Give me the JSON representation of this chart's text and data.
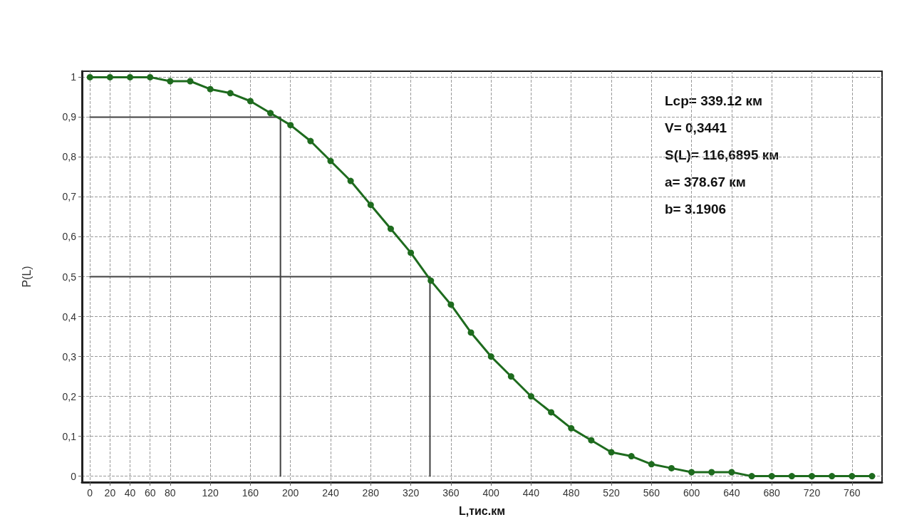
{
  "chart_data": {
    "type": "line",
    "xlabel": "L,тис.км",
    "ylabel": "P(L)",
    "x": [
      0,
      20,
      40,
      60,
      80,
      100,
      120,
      140,
      160,
      180,
      200,
      220,
      240,
      260,
      280,
      300,
      320,
      340,
      360,
      380,
      400,
      420,
      440,
      460,
      480,
      500,
      520,
      540,
      560,
      580,
      600,
      620,
      640,
      660,
      680,
      700,
      720,
      740,
      760,
      780
    ],
    "series": [
      {
        "color": "#1e6b1e",
        "marker": "circle",
        "values": [
          1,
          1,
          1,
          1,
          0.99,
          0.99,
          0.97,
          0.96,
          0.94,
          0.91,
          0.88,
          0.84,
          0.79,
          0.74,
          0.68,
          0.62,
          0.56,
          0.49,
          0.43,
          0.36,
          0.3,
          0.25,
          0.2,
          0.16,
          0.12,
          0.09,
          0.06,
          0.05,
          0.03,
          0.02,
          0.01,
          0.01,
          0.01,
          0,
          0,
          0,
          0,
          0,
          0,
          0
        ]
      },
      {
        "type": "line",
        "color": "#404040",
        "marker": "none",
        "x": [
          0,
          190,
          190
        ],
        "values": [
          0.9,
          0.9,
          0
        ]
      },
      {
        "type": "line",
        "color": "#404040",
        "marker": "none",
        "x": [
          0,
          339.12,
          339.12
        ],
        "values": [
          0.5,
          0.5,
          0
        ]
      }
    ],
    "xlim": [
      -8,
      790
    ],
    "xticks": [
      0,
      20,
      40,
      60,
      80,
      120,
      160,
      200,
      240,
      280,
      320,
      360,
      400,
      440,
      480,
      520,
      560,
      600,
      640,
      680,
      720,
      760
    ],
    "ylim": [
      -0.015,
      1.015
    ],
    "yticks": [
      {
        "value": 0,
        "label": "0"
      },
      {
        "value": 0.1,
        "label": "0,1"
      },
      {
        "value": 0.2,
        "label": "0,2"
      },
      {
        "value": 0.3,
        "label": "0,3"
      },
      {
        "value": 0.4,
        "label": "0,4"
      },
      {
        "value": 0.5,
        "label": "0,5"
      },
      {
        "value": 0.6,
        "label": "0,6"
      },
      {
        "value": 0.7,
        "label": "0,7"
      },
      {
        "value": 0.8,
        "label": "0,8"
      },
      {
        "value": 0.9,
        "label": "0,9"
      },
      {
        "value": 1,
        "label": "1"
      }
    ],
    "grid": true,
    "line_style": "solid",
    "annotations": [
      "Lср= 339.12 км",
      "V= 0,3441",
      "S(L)= 116,6895 км",
      "a= 378.67 км",
      "b= 3.1906"
    ]
  }
}
